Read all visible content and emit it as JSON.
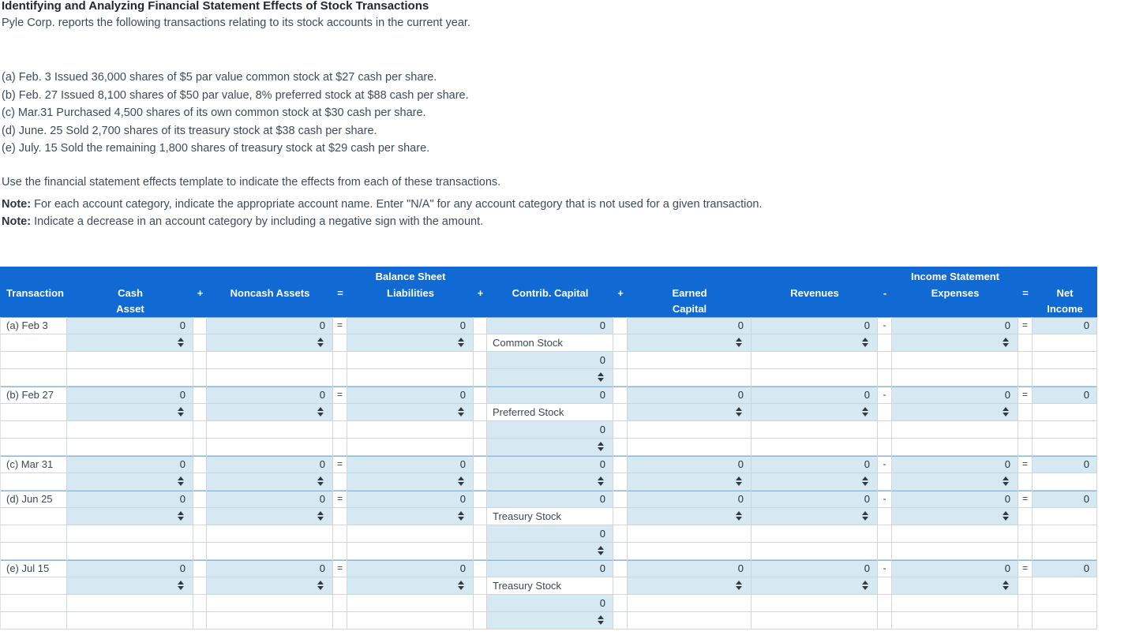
{
  "page": {
    "title": "Identifying and Analyzing Financial Statement Effects of Stock Transactions"
  },
  "intro": {
    "lead": "Pyle Corp. reports the following transactions relating to its stock accounts in the current year.",
    "transactions": [
      "(a) Feb. 3 Issued 36,000 shares of $5 par value common stock at $27 cash per share.",
      "(b) Feb. 27 Issued 8,100 shares of $50 par value, 8% preferred stock at $88 cash per share.",
      "(c) Mar.31 Purchased 4,500 shares of its own common stock at $30 cash per share.",
      "(d) June. 25 Sold 2,700 shares of its treasury stock at $38 cash per share.",
      "(e) July. 15 Sold the remaining 1,800 shares of treasury stock at $29 cash per share."
    ]
  },
  "instructions": {
    "use_line": "Use the financial statement effects template to indicate the effects from each of these transactions."
  },
  "notes": [
    {
      "prefix": "Note:",
      "text": " For each account category, indicate the appropriate account name. Enter \"N/A\" for any account category that is not used for a given transaction."
    },
    {
      "prefix": "Note:",
      "text": " Indicate a decrease in an account category by including a negative sign with the amount."
    }
  ],
  "table": {
    "header": {
      "balance_sheet": "Balance Sheet",
      "income_statement": "Income Statement",
      "transaction": "Transaction",
      "cash1": "Cash",
      "cash2": "Asset",
      "plus1": "+",
      "noncash": "Noncash Assets",
      "eq1": "=",
      "liabilities": "Liabilities",
      "plus2": "+",
      "contrib": "Contrib. Capital",
      "plus3": "+",
      "earned1": "Earned",
      "earned2": "Capital",
      "revenues": "Revenues",
      "minus1": "-",
      "expenses": "Expenses",
      "eq2": "=",
      "net1": "Net",
      "net2": "Income"
    },
    "colors": {
      "header_bg": "#1169d4",
      "input_cell_bg": "#d6e9f2"
    },
    "group_starts": [
      0,
      4,
      8,
      10,
      14
    ],
    "rows": [
      [
        [
          "L",
          "(a) Feb 3"
        ],
        [
          "N",
          "0"
        ],
        [
          "P",
          ""
        ],
        [
          "N",
          "0"
        ],
        [
          "P",
          "="
        ],
        [
          "N",
          "0"
        ],
        [
          "P",
          ""
        ],
        [
          "N",
          "0"
        ],
        [
          "P",
          ""
        ],
        [
          "N",
          "0"
        ],
        [
          "N",
          "0"
        ],
        [
          "P",
          "-"
        ],
        [
          "N",
          "0"
        ],
        [
          "P",
          "="
        ],
        [
          "N",
          "0"
        ]
      ],
      [
        [
          "L",
          ""
        ],
        [
          "S",
          ""
        ],
        [
          "P",
          ""
        ],
        [
          "S",
          ""
        ],
        [
          "P",
          ""
        ],
        [
          "S",
          ""
        ],
        [
          "P",
          ""
        ],
        [
          "T",
          "Common Stock"
        ],
        [
          "P",
          ""
        ],
        [
          "S",
          ""
        ],
        [
          "S",
          ""
        ],
        [
          "P",
          ""
        ],
        [
          "S",
          ""
        ],
        [
          "P",
          ""
        ],
        [
          "E",
          ""
        ]
      ],
      [
        [
          "L",
          ""
        ],
        [
          "E",
          ""
        ],
        [
          "P",
          ""
        ],
        [
          "E",
          ""
        ],
        [
          "P",
          ""
        ],
        [
          "E",
          ""
        ],
        [
          "P",
          ""
        ],
        [
          "N",
          "0"
        ],
        [
          "P",
          ""
        ],
        [
          "E",
          ""
        ],
        [
          "E",
          ""
        ],
        [
          "P",
          ""
        ],
        [
          "E",
          ""
        ],
        [
          "P",
          ""
        ],
        [
          "E",
          ""
        ]
      ],
      [
        [
          "L",
          ""
        ],
        [
          "E",
          ""
        ],
        [
          "P",
          ""
        ],
        [
          "E",
          ""
        ],
        [
          "P",
          ""
        ],
        [
          "E",
          ""
        ],
        [
          "P",
          ""
        ],
        [
          "S",
          ""
        ],
        [
          "P",
          ""
        ],
        [
          "E",
          ""
        ],
        [
          "E",
          ""
        ],
        [
          "P",
          ""
        ],
        [
          "E",
          ""
        ],
        [
          "P",
          ""
        ],
        [
          "E",
          ""
        ]
      ],
      [
        [
          "L",
          "(b) Feb 27"
        ],
        [
          "N",
          "0"
        ],
        [
          "P",
          ""
        ],
        [
          "N",
          "0"
        ],
        [
          "P",
          "="
        ],
        [
          "N",
          "0"
        ],
        [
          "P",
          ""
        ],
        [
          "N",
          "0"
        ],
        [
          "P",
          ""
        ],
        [
          "N",
          "0"
        ],
        [
          "N",
          "0"
        ],
        [
          "P",
          "-"
        ],
        [
          "N",
          "0"
        ],
        [
          "P",
          "="
        ],
        [
          "N",
          "0"
        ]
      ],
      [
        [
          "L",
          ""
        ],
        [
          "S",
          ""
        ],
        [
          "P",
          ""
        ],
        [
          "S",
          ""
        ],
        [
          "P",
          ""
        ],
        [
          "S",
          ""
        ],
        [
          "P",
          ""
        ],
        [
          "T",
          "Preferred Stock"
        ],
        [
          "P",
          ""
        ],
        [
          "S",
          ""
        ],
        [
          "S",
          ""
        ],
        [
          "P",
          ""
        ],
        [
          "S",
          ""
        ],
        [
          "P",
          ""
        ],
        [
          "E",
          ""
        ]
      ],
      [
        [
          "L",
          ""
        ],
        [
          "E",
          ""
        ],
        [
          "P",
          ""
        ],
        [
          "E",
          ""
        ],
        [
          "P",
          ""
        ],
        [
          "E",
          ""
        ],
        [
          "P",
          ""
        ],
        [
          "N",
          "0"
        ],
        [
          "P",
          ""
        ],
        [
          "E",
          ""
        ],
        [
          "E",
          ""
        ],
        [
          "P",
          ""
        ],
        [
          "E",
          ""
        ],
        [
          "P",
          ""
        ],
        [
          "E",
          ""
        ]
      ],
      [
        [
          "L",
          ""
        ],
        [
          "E",
          ""
        ],
        [
          "P",
          ""
        ],
        [
          "E",
          ""
        ],
        [
          "P",
          ""
        ],
        [
          "E",
          ""
        ],
        [
          "P",
          ""
        ],
        [
          "S",
          ""
        ],
        [
          "P",
          ""
        ],
        [
          "E",
          ""
        ],
        [
          "E",
          ""
        ],
        [
          "P",
          ""
        ],
        [
          "E",
          ""
        ],
        [
          "P",
          ""
        ],
        [
          "E",
          ""
        ]
      ],
      [
        [
          "L",
          "(c) Mar 31"
        ],
        [
          "N",
          "0"
        ],
        [
          "P",
          ""
        ],
        [
          "N",
          "0"
        ],
        [
          "P",
          "="
        ],
        [
          "N",
          "0"
        ],
        [
          "P",
          ""
        ],
        [
          "N",
          "0"
        ],
        [
          "P",
          ""
        ],
        [
          "N",
          "0"
        ],
        [
          "N",
          "0"
        ],
        [
          "P",
          "-"
        ],
        [
          "N",
          "0"
        ],
        [
          "P",
          "="
        ],
        [
          "N",
          "0"
        ]
      ],
      [
        [
          "L",
          ""
        ],
        [
          "S",
          ""
        ],
        [
          "P",
          ""
        ],
        [
          "S",
          ""
        ],
        [
          "P",
          ""
        ],
        [
          "S",
          ""
        ],
        [
          "P",
          ""
        ],
        [
          "S",
          ""
        ],
        [
          "P",
          ""
        ],
        [
          "S",
          ""
        ],
        [
          "S",
          ""
        ],
        [
          "P",
          ""
        ],
        [
          "S",
          ""
        ],
        [
          "P",
          ""
        ],
        [
          "E",
          ""
        ]
      ],
      [
        [
          "L",
          "(d) Jun 25"
        ],
        [
          "N",
          "0"
        ],
        [
          "P",
          ""
        ],
        [
          "N",
          "0"
        ],
        [
          "P",
          "="
        ],
        [
          "N",
          "0"
        ],
        [
          "P",
          ""
        ],
        [
          "N",
          "0"
        ],
        [
          "P",
          ""
        ],
        [
          "N",
          "0"
        ],
        [
          "N",
          "0"
        ],
        [
          "P",
          "-"
        ],
        [
          "N",
          "0"
        ],
        [
          "P",
          "="
        ],
        [
          "N",
          "0"
        ]
      ],
      [
        [
          "L",
          ""
        ],
        [
          "S",
          ""
        ],
        [
          "P",
          ""
        ],
        [
          "S",
          ""
        ],
        [
          "P",
          ""
        ],
        [
          "S",
          ""
        ],
        [
          "P",
          ""
        ],
        [
          "T",
          "Treasury Stock"
        ],
        [
          "P",
          ""
        ],
        [
          "S",
          ""
        ],
        [
          "S",
          ""
        ],
        [
          "P",
          ""
        ],
        [
          "S",
          ""
        ],
        [
          "P",
          ""
        ],
        [
          "E",
          ""
        ]
      ],
      [
        [
          "L",
          ""
        ],
        [
          "E",
          ""
        ],
        [
          "P",
          ""
        ],
        [
          "E",
          ""
        ],
        [
          "P",
          ""
        ],
        [
          "E",
          ""
        ],
        [
          "P",
          ""
        ],
        [
          "N",
          "0"
        ],
        [
          "P",
          ""
        ],
        [
          "E",
          ""
        ],
        [
          "E",
          ""
        ],
        [
          "P",
          ""
        ],
        [
          "E",
          ""
        ],
        [
          "P",
          ""
        ],
        [
          "E",
          ""
        ]
      ],
      [
        [
          "L",
          ""
        ],
        [
          "E",
          ""
        ],
        [
          "P",
          ""
        ],
        [
          "E",
          ""
        ],
        [
          "P",
          ""
        ],
        [
          "E",
          ""
        ],
        [
          "P",
          ""
        ],
        [
          "S",
          ""
        ],
        [
          "P",
          ""
        ],
        [
          "E",
          ""
        ],
        [
          "E",
          ""
        ],
        [
          "P",
          ""
        ],
        [
          "E",
          ""
        ],
        [
          "P",
          ""
        ],
        [
          "E",
          ""
        ]
      ],
      [
        [
          "L",
          "(e) Jul 15"
        ],
        [
          "N",
          "0"
        ],
        [
          "P",
          ""
        ],
        [
          "N",
          "0"
        ],
        [
          "P",
          "="
        ],
        [
          "N",
          "0"
        ],
        [
          "P",
          ""
        ],
        [
          "N",
          "0"
        ],
        [
          "P",
          ""
        ],
        [
          "N",
          "0"
        ],
        [
          "N",
          "0"
        ],
        [
          "P",
          "-"
        ],
        [
          "N",
          "0"
        ],
        [
          "P",
          "="
        ],
        [
          "N",
          "0"
        ]
      ],
      [
        [
          "L",
          ""
        ],
        [
          "S",
          ""
        ],
        [
          "P",
          ""
        ],
        [
          "S",
          ""
        ],
        [
          "P",
          ""
        ],
        [
          "S",
          ""
        ],
        [
          "P",
          ""
        ],
        [
          "T",
          "Treasury Stock"
        ],
        [
          "P",
          ""
        ],
        [
          "S",
          ""
        ],
        [
          "S",
          ""
        ],
        [
          "P",
          ""
        ],
        [
          "S",
          ""
        ],
        [
          "P",
          ""
        ],
        [
          "E",
          ""
        ]
      ],
      [
        [
          "L",
          ""
        ],
        [
          "E",
          ""
        ],
        [
          "P",
          ""
        ],
        [
          "E",
          ""
        ],
        [
          "P",
          ""
        ],
        [
          "E",
          ""
        ],
        [
          "P",
          ""
        ],
        [
          "N",
          "0"
        ],
        [
          "P",
          ""
        ],
        [
          "E",
          ""
        ],
        [
          "E",
          ""
        ],
        [
          "P",
          ""
        ],
        [
          "E",
          ""
        ],
        [
          "P",
          ""
        ],
        [
          "E",
          ""
        ]
      ],
      [
        [
          "L",
          ""
        ],
        [
          "E",
          ""
        ],
        [
          "P",
          ""
        ],
        [
          "E",
          ""
        ],
        [
          "P",
          ""
        ],
        [
          "E",
          ""
        ],
        [
          "P",
          ""
        ],
        [
          "S",
          ""
        ],
        [
          "P",
          ""
        ],
        [
          "E",
          ""
        ],
        [
          "E",
          ""
        ],
        [
          "P",
          ""
        ],
        [
          "E",
          ""
        ],
        [
          "P",
          ""
        ],
        [
          "E",
          ""
        ]
      ]
    ]
  }
}
